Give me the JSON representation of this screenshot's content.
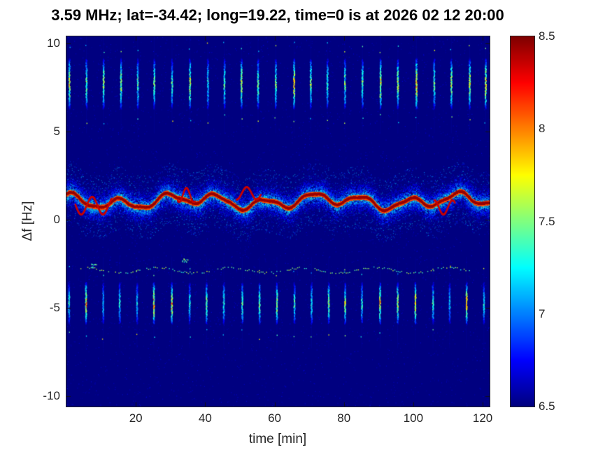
{
  "figure": {
    "background": "#ffffff",
    "axis_color": "#262626",
    "title_color": "#000000"
  },
  "chart_data": {
    "type": "heatmap",
    "title": "3.59 MHz;  lat=-34.42; long=19.22, time=0 is at 2026 02 12 20:00",
    "xlabel": "time [min]",
    "ylabel": "Δf [Hz]",
    "xlim": [
      0,
      122
    ],
    "ylim": [
      -10.6,
      10.4
    ],
    "xticks": [
      20,
      40,
      60,
      80,
      100,
      120
    ],
    "yticks": [
      -10,
      -5,
      0,
      5,
      10
    ],
    "grid": false,
    "colormap": "jet",
    "background_value": 6.5,
    "colorbar": {
      "min": 6.5,
      "max": 8.5,
      "ticks": [
        8.5,
        8,
        7.5,
        7,
        6.5
      ],
      "position": "right"
    },
    "render_seed": 7,
    "features": {
      "carrier_trace": {
        "description": "strong wavy spectral trace (dark red) across full time span",
        "mean_hz": 1.05,
        "harmonics": [
          [
            0.3,
            0.45,
            1.0
          ],
          [
            0.2,
            0.16,
            2.2
          ],
          [
            0.08,
            0.95,
            0.0
          ]
        ],
        "value": 8.45,
        "glow_value": 8.1,
        "halo_value": 8.1,
        "squiggles": [
          {
            "t": [
              2.5,
              13
            ],
            "mean": 0.8,
            "amp": 0.5,
            "freq": 1.0,
            "phase": 0.5
          },
          {
            "t": [
              32,
              37
            ],
            "mean": 1.4,
            "amp": 0.4,
            "freq": 1.5,
            "phase": 0.0
          },
          {
            "t": [
              49,
              56
            ],
            "mean": 1.5,
            "amp": 0.35,
            "freq": 1.1,
            "phase": 1.0
          },
          {
            "t": [
              106,
              112
            ],
            "mean": 0.7,
            "amp": 0.4,
            "freq": 1.2,
            "phase": 0.0
          }
        ]
      },
      "pulse_train_upper": {
        "description": "periodic vertical pulse bursts, upper sideband",
        "band_hz": [
          6.3,
          9.2
        ],
        "period_min": 5,
        "start_min": 0.8,
        "peak_value": 8.35
      },
      "pulse_train_lower": {
        "description": "periodic vertical pulse bursts, lower sideband",
        "band_hz": [
          -5.9,
          -3.5
        ],
        "period_min": 5,
        "start_min": 0.6,
        "peak_value": 8.3
      },
      "faint_trace": {
        "description": "weak dotted cyan trace below carrier",
        "mean_hz": -2.85,
        "amp_hz": 0.15,
        "t_range": [
          4,
          118
        ],
        "value": 7.3
      },
      "blips": [
        {
          "t": 34,
          "v": -2.3
        },
        {
          "t": 8,
          "v": -2.6
        }
      ]
    }
  }
}
